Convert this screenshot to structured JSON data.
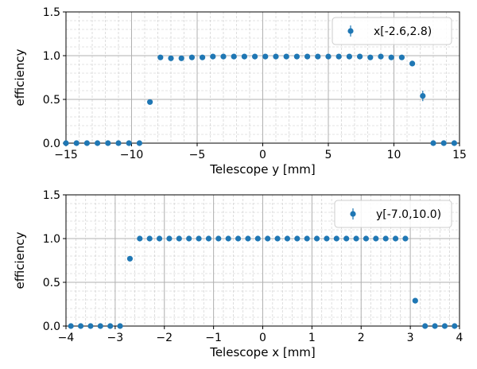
{
  "chart_data": [
    {
      "type": "scatter",
      "xlabel": "Telescope y [mm]",
      "ylabel": "efficiency",
      "xlim": [
        -15,
        15
      ],
      "ylim": [
        0.0,
        1.5
      ],
      "xticks": [
        -15,
        -10,
        -5,
        0,
        5,
        10,
        15
      ],
      "xtick_labels": [
        "−15",
        "−10",
        "−5",
        "0",
        "5",
        "10",
        "15"
      ],
      "yticks": [
        0.0,
        0.5,
        1.0,
        1.5
      ],
      "ytick_labels": [
        "0.0",
        "0.5",
        "1.0",
        "1.5"
      ],
      "grid": true,
      "legend_position": "top-right",
      "marker_color": "#1f77b4",
      "series": [
        {
          "name": "x[-2.6,2.8)",
          "x": [
            -15.0,
            -14.2,
            -13.4,
            -12.6,
            -11.8,
            -11.0,
            -10.2,
            -9.4,
            -8.6,
            -7.8,
            -7.0,
            -6.2,
            -5.4,
            -4.6,
            -3.8,
            -3.0,
            -2.2,
            -1.4,
            -0.6,
            0.2,
            1.0,
            1.8,
            2.6,
            3.4,
            4.2,
            5.0,
            5.8,
            6.6,
            7.4,
            8.2,
            9.0,
            9.8,
            10.6,
            11.4,
            12.2,
            13.0,
            13.8,
            14.6
          ],
          "y": [
            0.0,
            0.0,
            0.0,
            0.0,
            0.0,
            0.0,
            0.0,
            0.0,
            0.47,
            0.98,
            0.97,
            0.97,
            0.98,
            0.98,
            0.99,
            0.99,
            0.99,
            0.99,
            0.99,
            0.99,
            0.99,
            0.99,
            0.99,
            0.99,
            0.99,
            0.99,
            0.99,
            0.99,
            0.99,
            0.98,
            0.99,
            0.98,
            0.98,
            0.91,
            0.54,
            0.0,
            0.0,
            0.0
          ],
          "yerr": [
            0,
            0,
            0,
            0,
            0,
            0,
            0,
            0,
            0.01,
            0.01,
            0.01,
            0.01,
            0.01,
            0.01,
            0.01,
            0.01,
            0.01,
            0.01,
            0.01,
            0.01,
            0.01,
            0.01,
            0.01,
            0.01,
            0.01,
            0.01,
            0.01,
            0.01,
            0.01,
            0.01,
            0.01,
            0.01,
            0.01,
            0.03,
            0.06,
            0,
            0,
            0
          ]
        }
      ]
    },
    {
      "type": "scatter",
      "xlabel": "Telescope x [mm]",
      "ylabel": "efficiency",
      "xlim": [
        -4,
        4
      ],
      "ylim": [
        0.0,
        1.5
      ],
      "xticks": [
        -4,
        -3,
        -2,
        -1,
        0,
        1,
        2,
        3,
        4
      ],
      "xtick_labels": [
        "−4",
        "−3",
        "−2",
        "−1",
        "0",
        "1",
        "2",
        "3",
        "4"
      ],
      "yticks": [
        0.0,
        0.5,
        1.0,
        1.5
      ],
      "ytick_labels": [
        "0.0",
        "0.5",
        "1.0",
        "1.5"
      ],
      "grid": true,
      "legend_position": "top-right",
      "marker_color": "#1f77b4",
      "series": [
        {
          "name": "y[-7.0,10.0)",
          "x": [
            -3.9,
            -3.7,
            -3.5,
            -3.3,
            -3.1,
            -2.9,
            -2.7,
            -2.5,
            -2.3,
            -2.1,
            -1.9,
            -1.7,
            -1.5,
            -1.3,
            -1.1,
            -0.9,
            -0.7,
            -0.5,
            -0.3,
            -0.1,
            0.1,
            0.3,
            0.5,
            0.7,
            0.9,
            1.1,
            1.3,
            1.5,
            1.7,
            1.9,
            2.1,
            2.3,
            2.5,
            2.7,
            2.9,
            3.1,
            3.3,
            3.5,
            3.7,
            3.9
          ],
          "y": [
            0.0,
            0.0,
            0.0,
            0.0,
            0.0,
            0.0,
            0.77,
            1.0,
            1.0,
            1.0,
            1.0,
            1.0,
            1.0,
            1.0,
            1.0,
            1.0,
            1.0,
            1.0,
            1.0,
            1.0,
            1.0,
            1.0,
            1.0,
            1.0,
            1.0,
            1.0,
            1.0,
            1.0,
            1.0,
            1.0,
            1.0,
            1.0,
            1.0,
            1.0,
            1.0,
            0.29,
            0.0,
            0.0,
            0.0,
            0.0
          ],
          "yerr": [
            0,
            0,
            0,
            0,
            0,
            0,
            0.02,
            0,
            0,
            0,
            0,
            0,
            0,
            0,
            0,
            0,
            0,
            0,
            0,
            0,
            0,
            0,
            0,
            0,
            0,
            0,
            0,
            0,
            0,
            0,
            0,
            0,
            0,
            0,
            0,
            0.02,
            0,
            0,
            0,
            0
          ]
        }
      ]
    }
  ]
}
